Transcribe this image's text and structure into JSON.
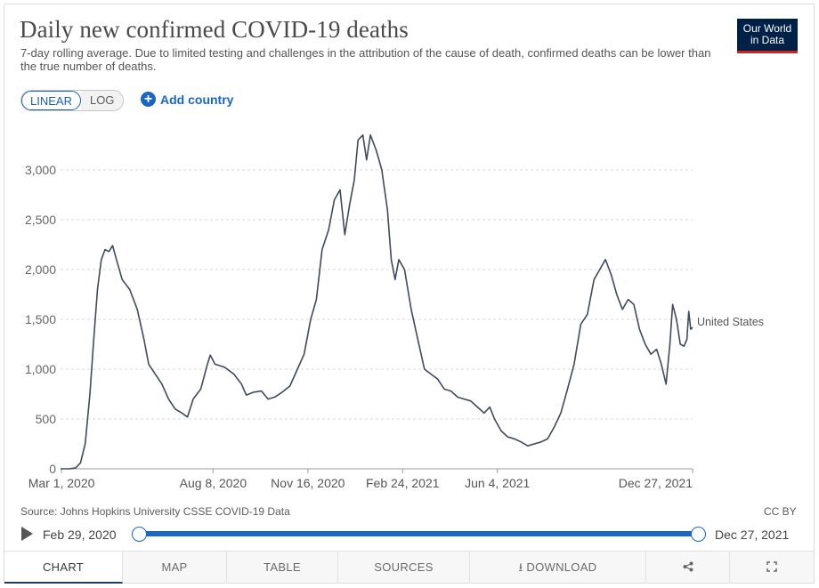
{
  "header": {
    "title": "Daily new confirmed COVID-19 deaths",
    "subtitle": "7-day rolling average. Due to limited testing and challenges in the attribution of the cause of death, confirmed deaths can be lower than the true number of deaths.",
    "logo_line1": "Our World",
    "logo_line2": "in Data",
    "brand_color": "#002147",
    "brand_accent": "#ce261e"
  },
  "controls": {
    "linear_label": "LINEAR",
    "log_label": "LOG",
    "active_scale": "linear",
    "add_country_label": "Add country"
  },
  "chart_data": {
    "type": "line",
    "title": "Daily new confirmed COVID-19 deaths",
    "xlabel": "",
    "ylabel": "",
    "ylim": [
      0,
      3500
    ],
    "yticks": [
      0,
      500,
      1000,
      1500,
      2000,
      2500,
      3000
    ],
    "ytick_labels": [
      "0",
      "500",
      "1,000",
      "1,500",
      "2,000",
      "2,500",
      "3,000"
    ],
    "xticks": [
      "2020-03-01",
      "2020-08-08",
      "2020-11-16",
      "2021-02-24",
      "2021-06-04",
      "2021-12-27"
    ],
    "xtick_labels": [
      "Mar 1, 2020",
      "Aug 8, 2020",
      "Nov 16, 2020",
      "Feb 24, 2021",
      "Jun 4, 2021",
      "Dec 27, 2021"
    ],
    "x_range": [
      "2020-02-29",
      "2021-12-27"
    ],
    "grid": true,
    "legend": "inline-end",
    "series": [
      {
        "name": "United States",
        "color": "#3d4b5e",
        "points": [
          [
            "2020-02-29",
            0
          ],
          [
            "2020-03-10",
            1
          ],
          [
            "2020-03-16",
            10
          ],
          [
            "2020-03-21",
            60
          ],
          [
            "2020-03-26",
            250
          ],
          [
            "2020-03-31",
            750
          ],
          [
            "2020-04-04",
            1300
          ],
          [
            "2020-04-08",
            1800
          ],
          [
            "2020-04-12",
            2100
          ],
          [
            "2020-04-16",
            2200
          ],
          [
            "2020-04-20",
            2180
          ],
          [
            "2020-04-24",
            2240
          ],
          [
            "2020-04-28",
            2100
          ],
          [
            "2020-05-04",
            1900
          ],
          [
            "2020-05-12",
            1800
          ],
          [
            "2020-05-20",
            1600
          ],
          [
            "2020-05-27",
            1300
          ],
          [
            "2020-06-01",
            1050
          ],
          [
            "2020-06-08",
            950
          ],
          [
            "2020-06-15",
            850
          ],
          [
            "2020-06-22",
            700
          ],
          [
            "2020-06-29",
            600
          ],
          [
            "2020-07-06",
            560
          ],
          [
            "2020-07-12",
            520
          ],
          [
            "2020-07-18",
            700
          ],
          [
            "2020-07-26",
            800
          ],
          [
            "2020-08-02",
            1050
          ],
          [
            "2020-08-05",
            1140
          ],
          [
            "2020-08-10",
            1050
          ],
          [
            "2020-08-20",
            1020
          ],
          [
            "2020-08-30",
            950
          ],
          [
            "2020-09-07",
            850
          ],
          [
            "2020-09-12",
            740
          ],
          [
            "2020-09-20",
            770
          ],
          [
            "2020-09-28",
            780
          ],
          [
            "2020-10-05",
            700
          ],
          [
            "2020-10-12",
            720
          ],
          [
            "2020-10-20",
            770
          ],
          [
            "2020-10-28",
            830
          ],
          [
            "2020-11-05",
            1000
          ],
          [
            "2020-11-12",
            1150
          ],
          [
            "2020-11-19",
            1500
          ],
          [
            "2020-11-25",
            1700
          ],
          [
            "2020-12-01",
            2200
          ],
          [
            "2020-12-08",
            2400
          ],
          [
            "2020-12-14",
            2700
          ],
          [
            "2020-12-20",
            2800
          ],
          [
            "2020-12-25",
            2350
          ],
          [
            "2020-12-30",
            2650
          ],
          [
            "2021-01-04",
            2900
          ],
          [
            "2021-01-08",
            3300
          ],
          [
            "2021-01-13",
            3350
          ],
          [
            "2021-01-17",
            3100
          ],
          [
            "2021-01-21",
            3350
          ],
          [
            "2021-01-27",
            3200
          ],
          [
            "2021-02-02",
            3000
          ],
          [
            "2021-02-08",
            2600
          ],
          [
            "2021-02-12",
            2100
          ],
          [
            "2021-02-16",
            1900
          ],
          [
            "2021-02-20",
            2100
          ],
          [
            "2021-02-26",
            2000
          ],
          [
            "2021-03-05",
            1600
          ],
          [
            "2021-03-12",
            1300
          ],
          [
            "2021-03-19",
            1000
          ],
          [
            "2021-03-26",
            950
          ],
          [
            "2021-04-02",
            900
          ],
          [
            "2021-04-09",
            800
          ],
          [
            "2021-04-16",
            780
          ],
          [
            "2021-04-23",
            720
          ],
          [
            "2021-04-30",
            700
          ],
          [
            "2021-05-07",
            680
          ],
          [
            "2021-05-14",
            620
          ],
          [
            "2021-05-21",
            560
          ],
          [
            "2021-05-27",
            620
          ],
          [
            "2021-06-01",
            500
          ],
          [
            "2021-06-08",
            380
          ],
          [
            "2021-06-15",
            320
          ],
          [
            "2021-06-22",
            300
          ],
          [
            "2021-06-29",
            270
          ],
          [
            "2021-07-06",
            230
          ],
          [
            "2021-07-13",
            250
          ],
          [
            "2021-07-20",
            270
          ],
          [
            "2021-07-27",
            300
          ],
          [
            "2021-08-03",
            420
          ],
          [
            "2021-08-10",
            560
          ],
          [
            "2021-08-17",
            800
          ],
          [
            "2021-08-24",
            1050
          ],
          [
            "2021-08-31",
            1450
          ],
          [
            "2021-09-07",
            1550
          ],
          [
            "2021-09-14",
            1900
          ],
          [
            "2021-09-20",
            2000
          ],
          [
            "2021-09-26",
            2100
          ],
          [
            "2021-10-02",
            1950
          ],
          [
            "2021-10-08",
            1750
          ],
          [
            "2021-10-14",
            1600
          ],
          [
            "2021-10-20",
            1700
          ],
          [
            "2021-10-26",
            1650
          ],
          [
            "2021-11-01",
            1400
          ],
          [
            "2021-11-07",
            1250
          ],
          [
            "2021-11-13",
            1150
          ],
          [
            "2021-11-19",
            1200
          ],
          [
            "2021-11-24",
            1050
          ],
          [
            "2021-11-29",
            850
          ],
          [
            "2021-12-03",
            1250
          ],
          [
            "2021-12-06",
            1650
          ],
          [
            "2021-12-10",
            1500
          ],
          [
            "2021-12-14",
            1250
          ],
          [
            "2021-12-18",
            1230
          ],
          [
            "2021-12-21",
            1300
          ],
          [
            "2021-12-23",
            1580
          ],
          [
            "2021-12-25",
            1400
          ],
          [
            "2021-12-27",
            1420
          ]
        ]
      }
    ]
  },
  "footer": {
    "source": "Source: Johns Hopkins University CSSE COVID-19 Data",
    "license": "CC BY"
  },
  "timeline": {
    "start_label": "Feb 29, 2020",
    "end_label": "Dec 27, 2021",
    "accent": "#1a66c8"
  },
  "tabs": [
    {
      "label": "CHART",
      "active": true
    },
    {
      "label": "MAP",
      "active": false
    },
    {
      "label": "TABLE",
      "active": false
    },
    {
      "label": "SOURCES",
      "active": false
    },
    {
      "label": "DOWNLOAD",
      "active": false
    },
    {
      "label": "",
      "icon": "share-icon",
      "active": false
    },
    {
      "label": "",
      "icon": "fullscreen-icon",
      "active": false
    }
  ]
}
